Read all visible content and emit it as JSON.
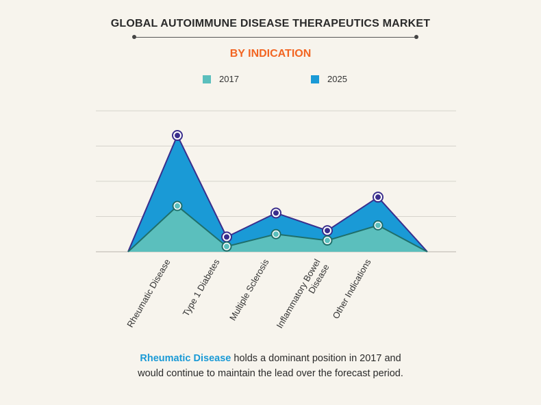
{
  "header": {
    "title": "GLOBAL AUTOIMMUNE DISEASE THERAPEUTICS MARKET",
    "subtitle": "BY INDICATION"
  },
  "colors": {
    "series_2017": "#5bbfbd",
    "series_2025": "#1a9ad6",
    "line_2017": "#1f6f6a",
    "line_2025": "#3a2e8c",
    "accent": "#f26522"
  },
  "caption": {
    "highlight": "Rheumatic Disease",
    "text": "holds a dominant position in 2017 and",
    "line2": "would continue to maintain the lead over the forecast period."
  },
  "chart_data": {
    "type": "area",
    "title": "GLOBAL AUTOIMMUNE DISEASE THERAPEUTICS MARKET",
    "subtitle": "BY INDICATION",
    "categories": [
      "Rheumatic Disease",
      "Type 1 Diabetes",
      "Multiple Sclerosis",
      "Inflammatory Bowel Disease",
      "Other Indications"
    ],
    "series": [
      {
        "name": "2017",
        "values": [
          1.3,
          0.15,
          0.5,
          0.32,
          0.75
        ]
      },
      {
        "name": "2025",
        "values": [
          3.3,
          0.42,
          1.1,
          0.6,
          1.55
        ]
      }
    ],
    "ylim": [
      0,
      4
    ],
    "ticks_labeled": false,
    "grid": true,
    "legend": "top-center",
    "baseline_endpoints": true
  }
}
